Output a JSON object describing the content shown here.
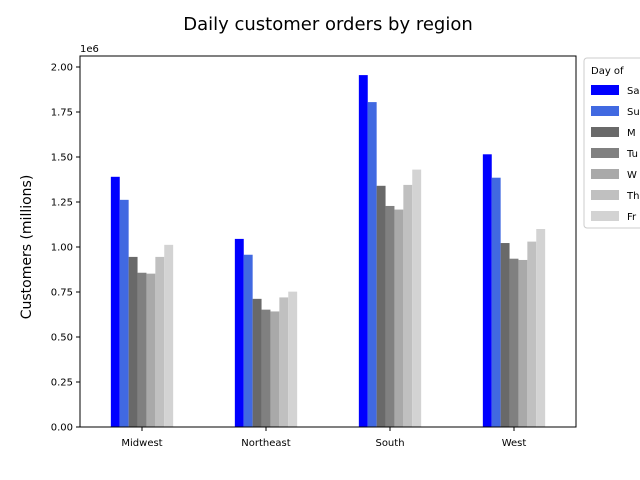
{
  "chart_data": {
    "type": "bar",
    "title": "Daily customer orders by region",
    "ylabel": "Customers (millions)",
    "xlabel": "",
    "offset_label": "1e6",
    "categories": [
      "Midwest",
      "Northeast",
      "South",
      "West"
    ],
    "ylim": [
      0,
      2000000
    ],
    "yticks": [
      "0.00",
      "0.25",
      "0.50",
      "0.75",
      "1.00",
      "1.25",
      "1.50",
      "1.75",
      "2.00"
    ],
    "ytick_values": [
      0,
      250000,
      500000,
      750000,
      1000000,
      1250000,
      1500000,
      1750000,
      2000000
    ],
    "grid": false,
    "legend_title": "Day of",
    "legend_position": "outside right, top",
    "series": [
      {
        "name": "Sa",
        "color": "#0000ff",
        "values": [
          1390000,
          1045000,
          1955000,
          1515000
        ]
      },
      {
        "name": "Su",
        "color": "#4169e1",
        "values": [
          1262000,
          957000,
          1805000,
          1385000
        ]
      },
      {
        "name": "M",
        "color": "#696969",
        "values": [
          945000,
          712000,
          1340000,
          1022000
        ]
      },
      {
        "name": "Tu",
        "color": "#808080",
        "values": [
          857000,
          652000,
          1228000,
          935000
        ]
      },
      {
        "name": "W",
        "color": "#a9a9a9",
        "values": [
          852000,
          642000,
          1208000,
          928000
        ]
      },
      {
        "name": "Th",
        "color": "#c0c0c0",
        "values": [
          945000,
          720000,
          1345000,
          1030000
        ]
      },
      {
        "name": "Fr",
        "color": "#d3d3d3",
        "values": [
          1012000,
          752000,
          1430000,
          1100000
        ]
      }
    ]
  }
}
